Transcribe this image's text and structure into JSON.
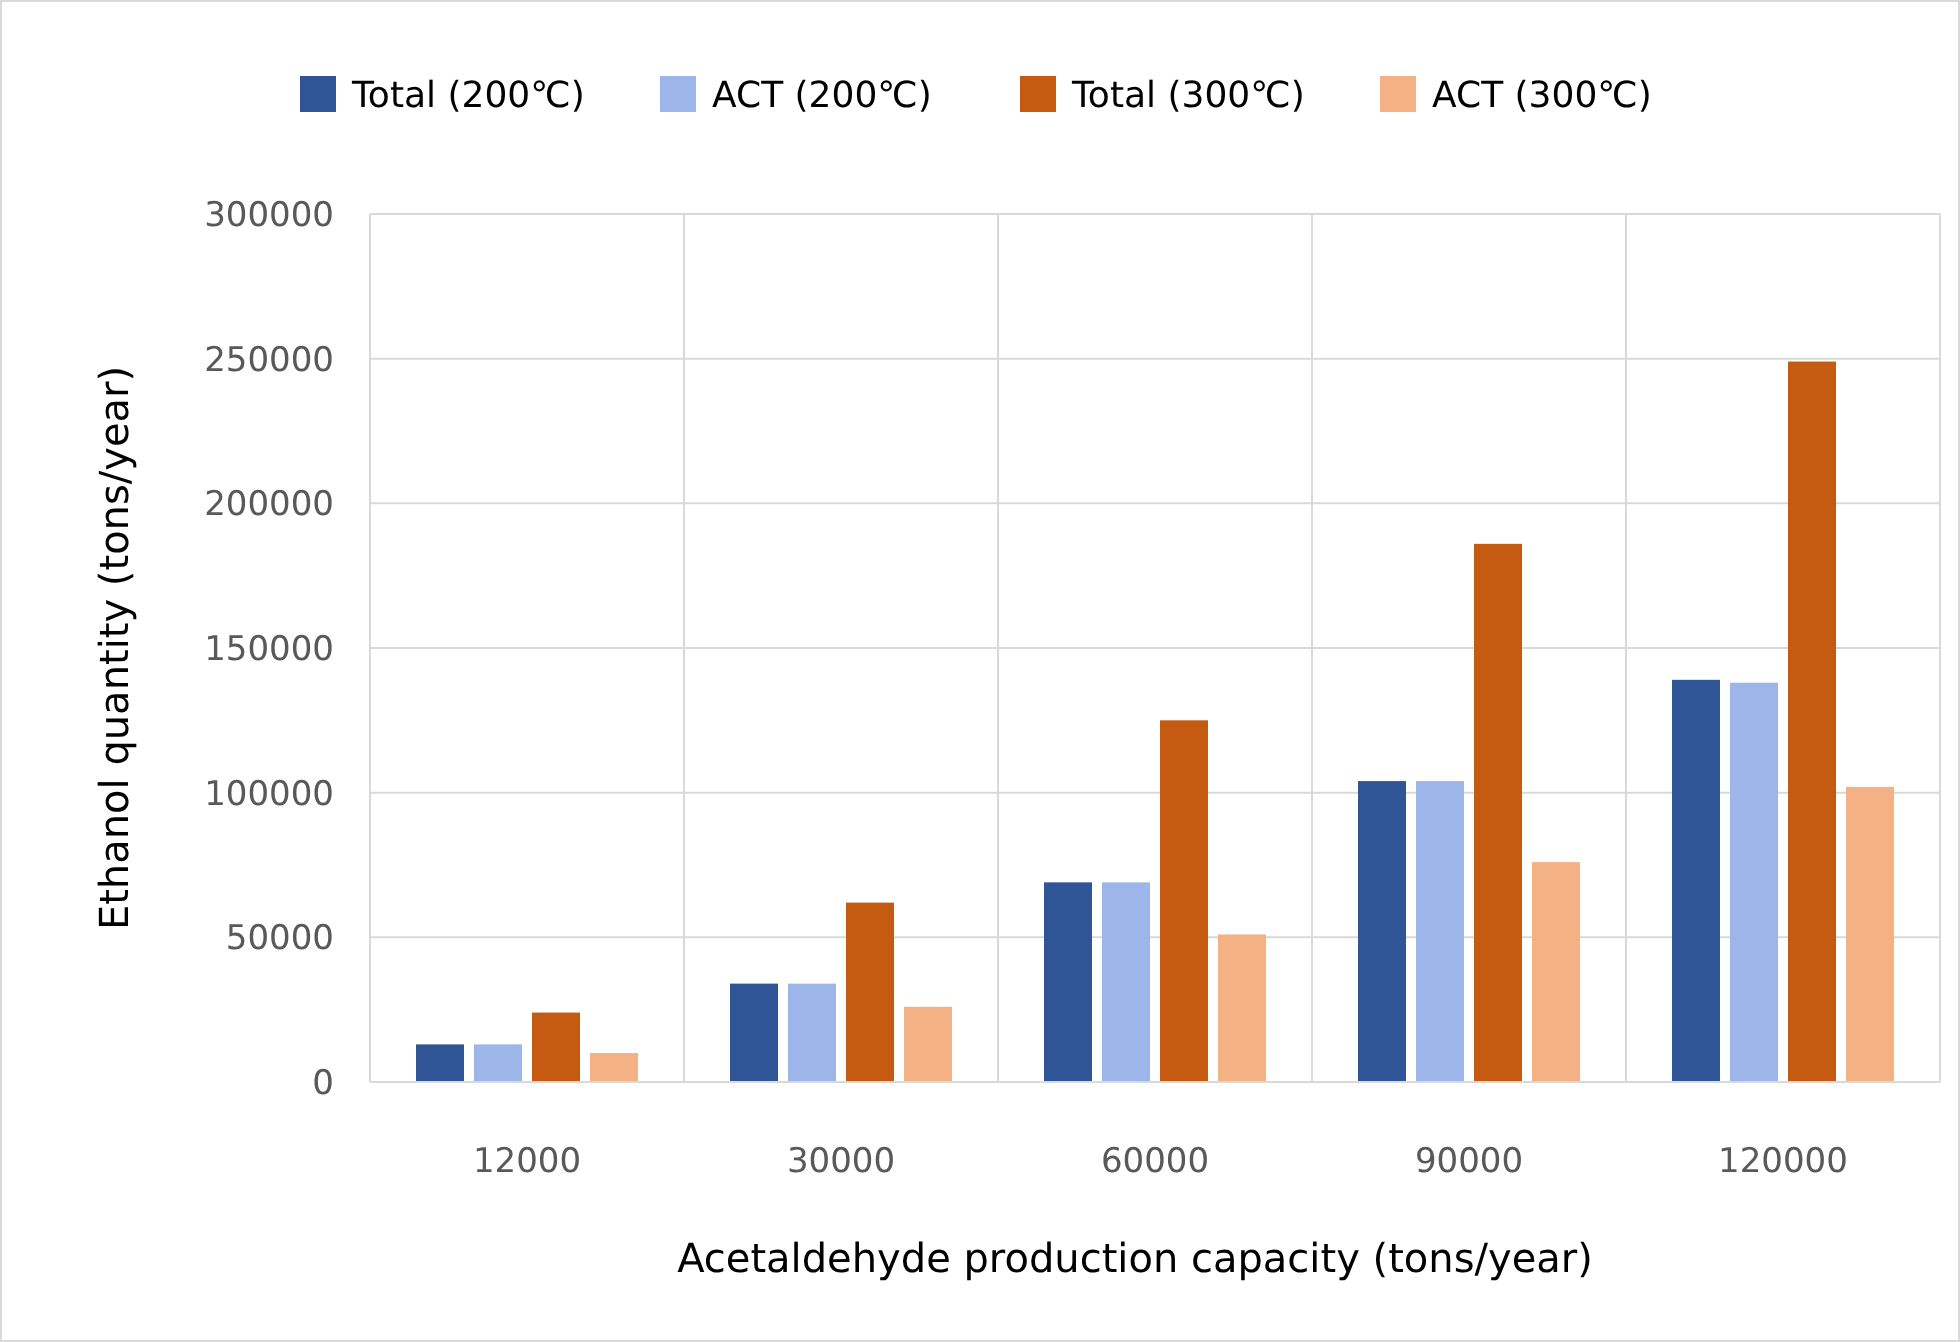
{
  "chart_data": {
    "type": "bar",
    "xlabel": "Acetaldehyde production capacity (tons/year)",
    "ylabel": "Ethanol quantity (tons/year)",
    "categories": [
      "12000",
      "30000",
      "60000",
      "90000",
      "120000"
    ],
    "series": [
      {
        "name": "Total (200℃)",
        "color": "#2f5597",
        "values": [
          13000,
          34000,
          69000,
          104000,
          139000
        ]
      },
      {
        "name": "ACT (200℃)",
        "color": "#9db6ea",
        "values": [
          13000,
          34000,
          69000,
          104000,
          138000
        ]
      },
      {
        "name": "Total (300℃)",
        "color": "#c55a11",
        "values": [
          24000,
          62000,
          125000,
          186000,
          249000
        ]
      },
      {
        "name": "ACT (300℃)",
        "color": "#f4b183",
        "values": [
          10000,
          26000,
          51000,
          76000,
          102000
        ]
      }
    ],
    "ylim": [
      0,
      300000
    ],
    "yticks": [
      0,
      50000,
      100000,
      150000,
      200000,
      250000,
      300000
    ],
    "grid": true,
    "legend": "top"
  }
}
